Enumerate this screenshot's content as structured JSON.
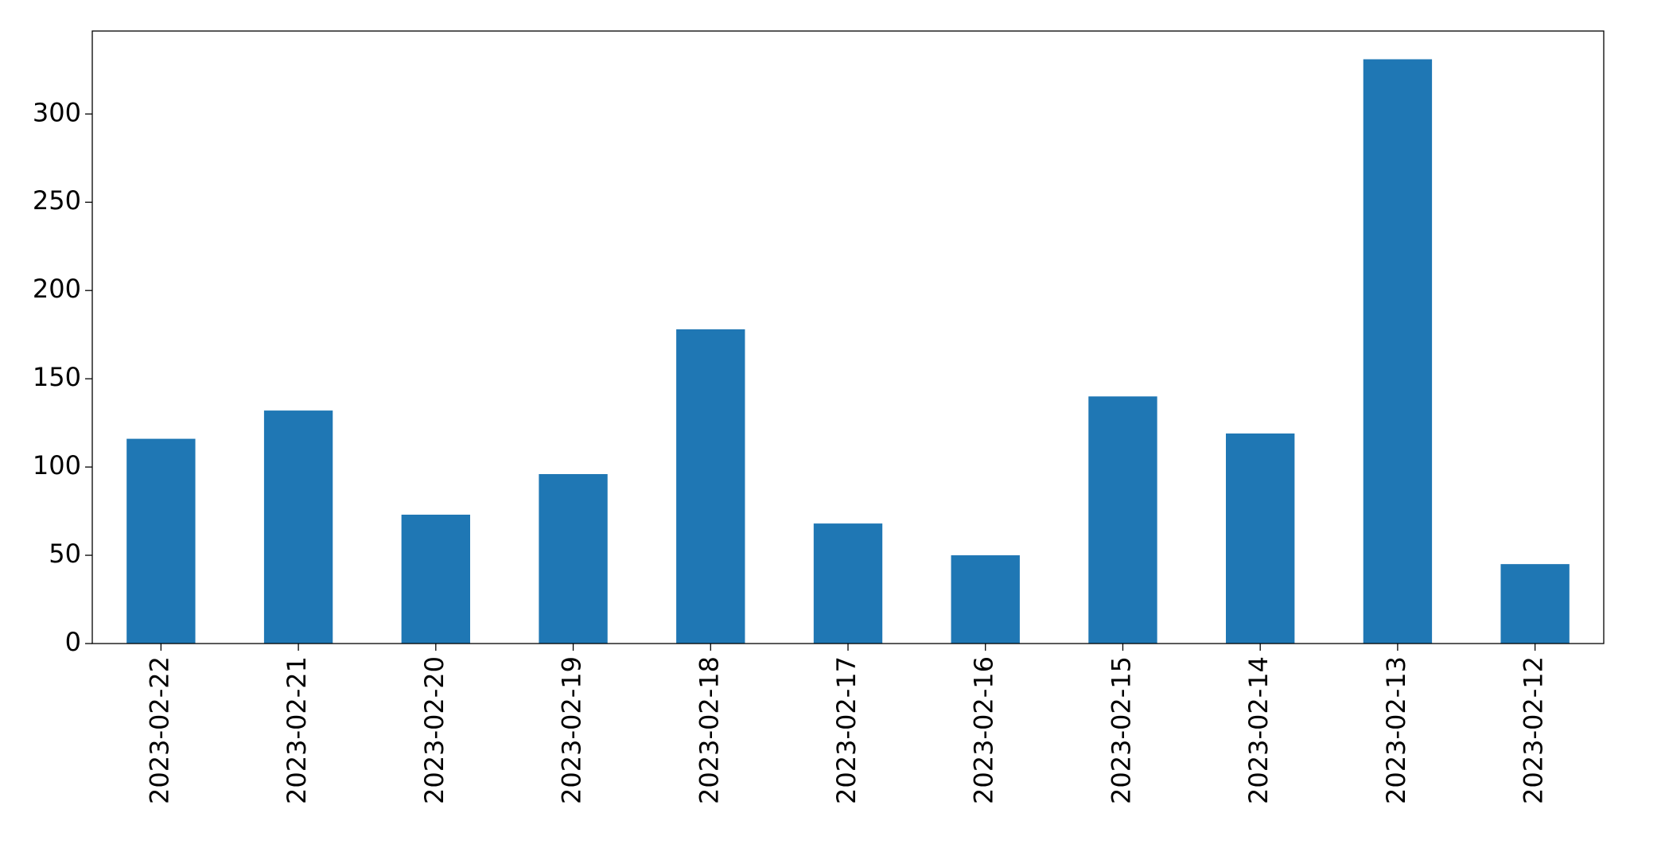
{
  "chart_data": {
    "type": "bar",
    "categories": [
      "2023-02-22",
      "2023-02-21",
      "2023-02-20",
      "2023-02-19",
      "2023-02-18",
      "2023-02-17",
      "2023-02-16",
      "2023-02-15",
      "2023-02-14",
      "2023-02-13",
      "2023-02-12"
    ],
    "values": [
      116,
      132,
      73,
      96,
      178,
      68,
      50,
      140,
      119,
      331,
      45
    ],
    "color": "#1f77b4",
    "ylim": [
      0,
      347
    ],
    "yticks": [
      0,
      50,
      100,
      150,
      200,
      250,
      300
    ],
    "grid": false
  }
}
